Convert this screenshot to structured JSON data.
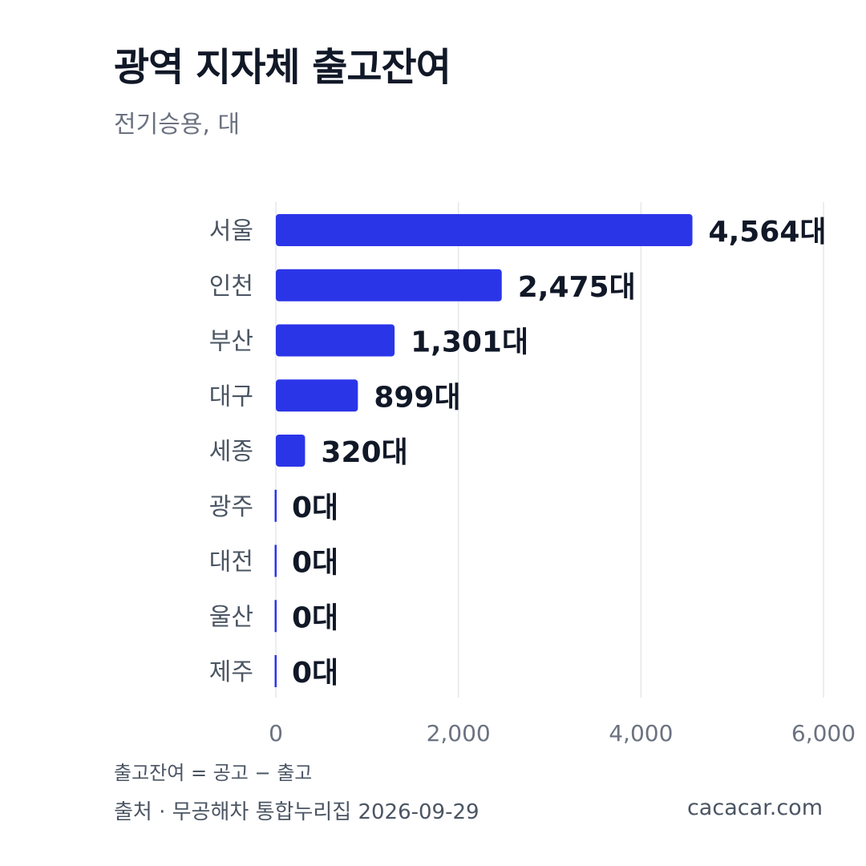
{
  "header": {
    "title": "광역 지자체 출고잔여",
    "subtitle": "전기승용, 대"
  },
  "footer": {
    "note": "출고잔여 = 공고 − 출고",
    "source": "출처 · 무공해차 통합누리집 2026-09-29",
    "site": "cacacar.com"
  },
  "colors": {
    "bar": "#2b35e8",
    "value_label": "#111827",
    "category_label": "#4b5563",
    "tick_label": "#6b7280",
    "grid": "#e5e7eb"
  },
  "chart_data": {
    "type": "bar",
    "orientation": "horizontal",
    "title": "광역 지자체 출고잔여",
    "subtitle": "전기승용, 대",
    "categories": [
      "서울",
      "인천",
      "부산",
      "대구",
      "세종",
      "광주",
      "대전",
      "울산",
      "제주"
    ],
    "values": [
      4564,
      2475,
      1301,
      899,
      320,
      0,
      0,
      0,
      0
    ],
    "value_labels": [
      "4,564대",
      "2,475대",
      "1,301대",
      "899대",
      "320대",
      "0대",
      "0대",
      "0대",
      "0대"
    ],
    "xlim": [
      0,
      6000
    ],
    "xticks": [
      0,
      2000,
      4000,
      6000
    ],
    "xtick_labels": [
      "0",
      "2,000",
      "4,000",
      "6,000"
    ],
    "grid": true
  }
}
